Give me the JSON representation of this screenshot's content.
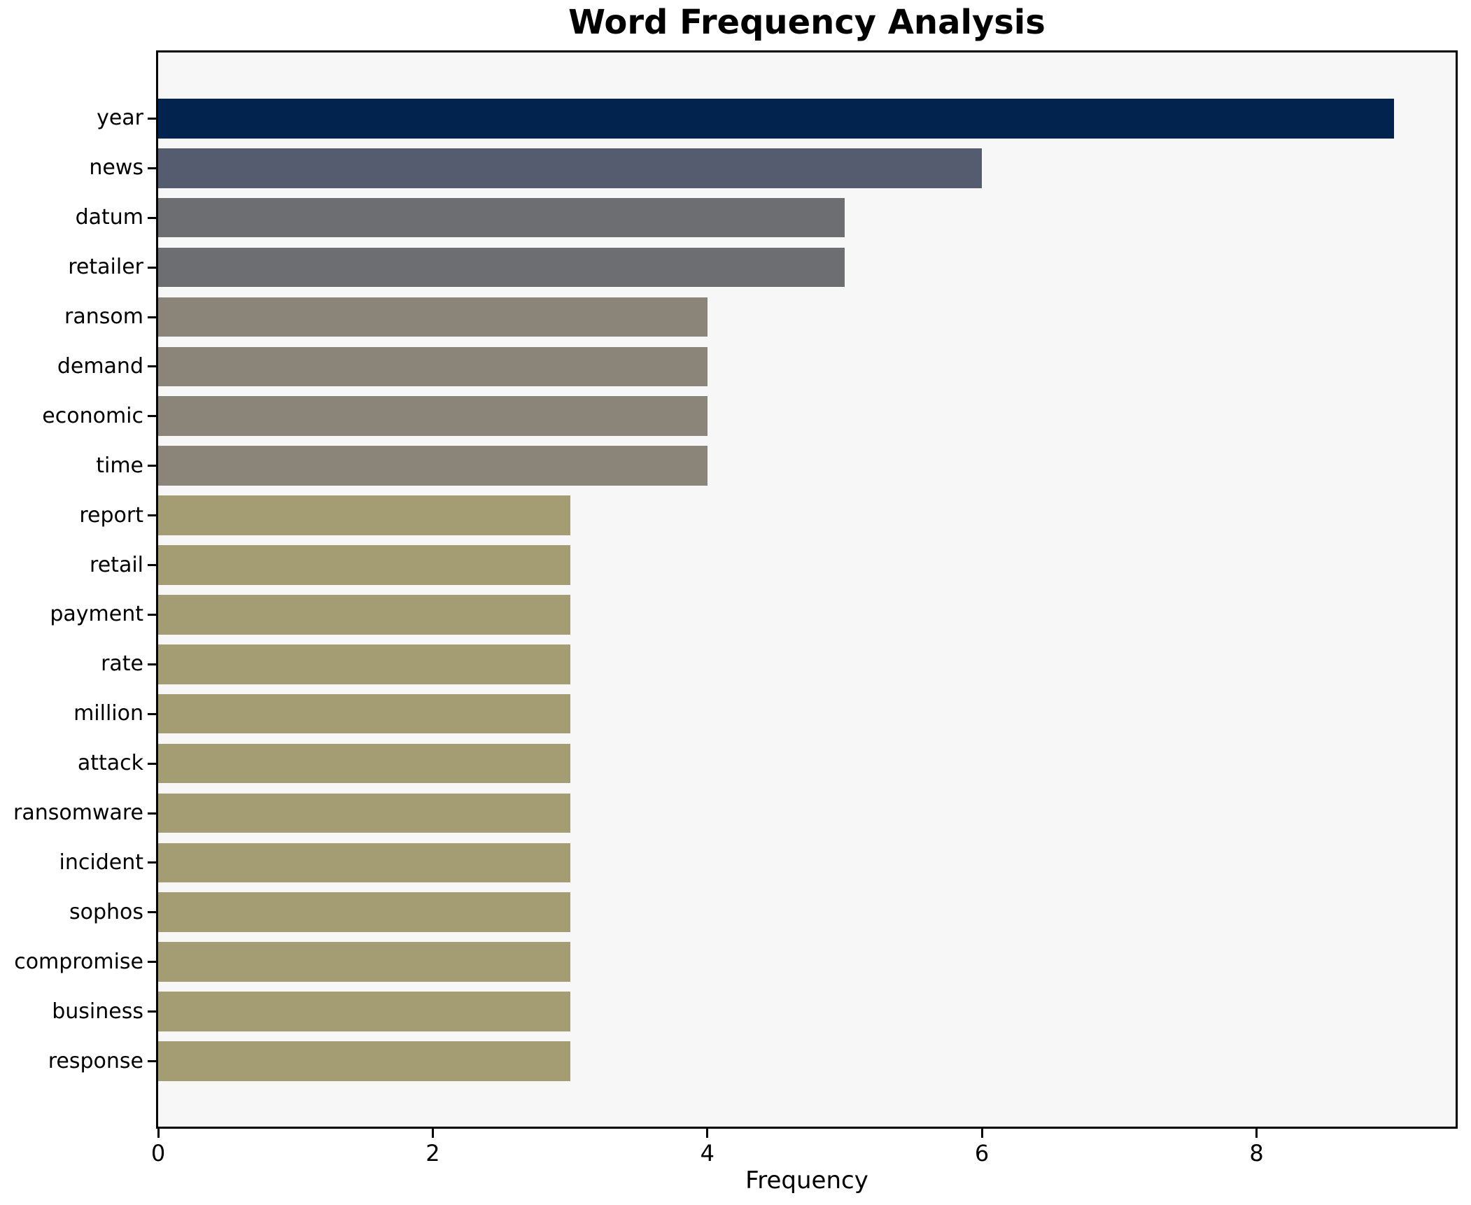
{
  "chart_data": {
    "type": "bar",
    "orientation": "horizontal",
    "title": "Word Frequency Analysis",
    "xlabel": "Frequency",
    "ylabel": "",
    "categories": [
      "year",
      "news",
      "datum",
      "retailer",
      "ransom",
      "demand",
      "economic",
      "time",
      "report",
      "retail",
      "payment",
      "rate",
      "million",
      "attack",
      "ransomware",
      "incident",
      "sophos",
      "compromise",
      "business",
      "response"
    ],
    "values": [
      9,
      6,
      5,
      5,
      4,
      4,
      4,
      4,
      3,
      3,
      3,
      3,
      3,
      3,
      3,
      3,
      3,
      3,
      3,
      3
    ],
    "bar_colors": [
      "#01234e",
      "#565c6f",
      "#6d6e71",
      "#6d6e71",
      "#8a8578",
      "#8a8578",
      "#8a8578",
      "#8a8578",
      "#a49d73",
      "#a49d73",
      "#a49d73",
      "#a49d73",
      "#a49d73",
      "#a49d73",
      "#a49d73",
      "#a49d73",
      "#a49d73",
      "#a49d73",
      "#a49d73",
      "#a49d73"
    ],
    "xlim": [
      0,
      9.45
    ],
    "xticks": [
      0,
      2,
      4,
      6,
      8
    ],
    "grid": false,
    "legend": "none",
    "plot_bg": "#f7f7f8",
    "figure_bg": "#ffffff",
    "spine_color": "#000000"
  }
}
